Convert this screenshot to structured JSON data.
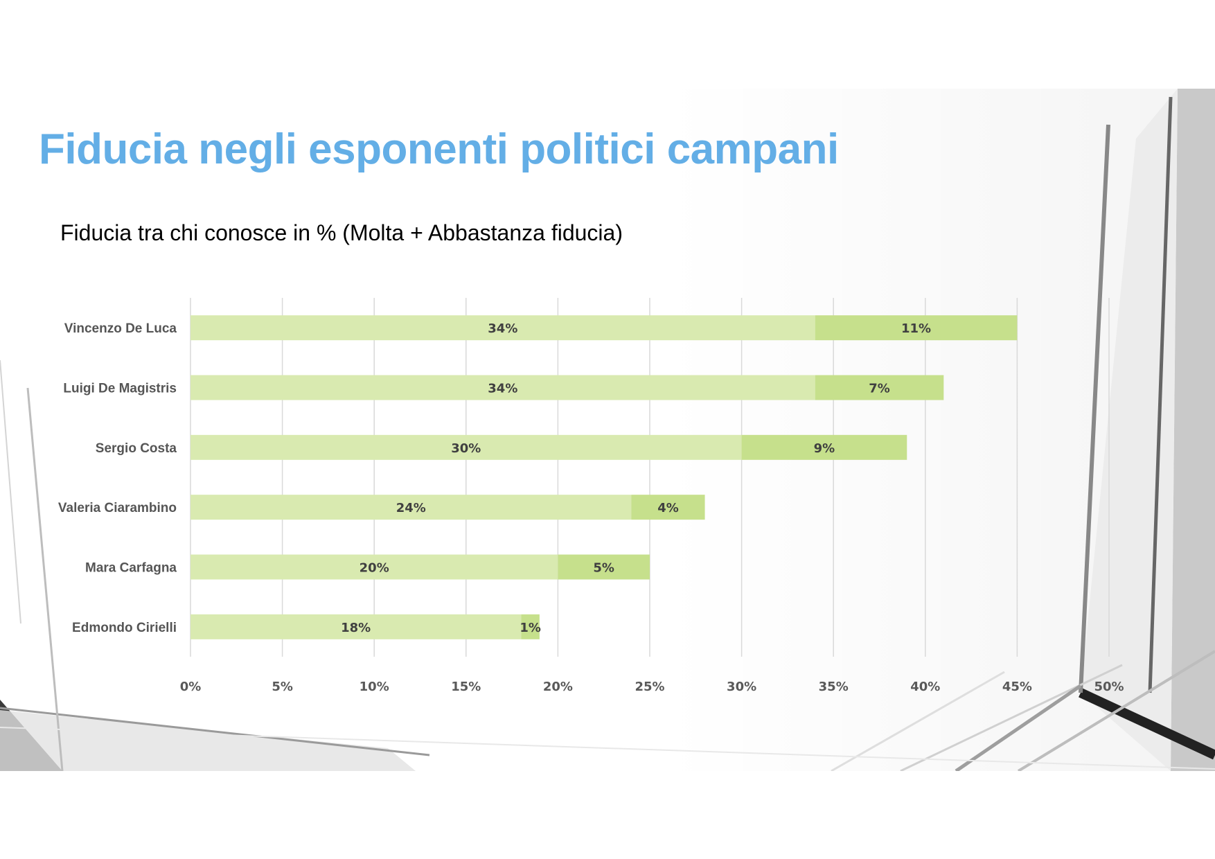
{
  "slide": {
    "title": "Fiducia negli esponenti politici campani",
    "chart_heading": "Fiducia tra chi conosce in % (Molta + Abbastanza fiducia)"
  },
  "colors": {
    "title": "#63aee6",
    "series_1": "#d9eab0",
    "series_2": "#c6e08c",
    "gridline": "#d9d9d9"
  },
  "chart_data": {
    "type": "bar",
    "orientation": "horizontal",
    "stacked": true,
    "title": "Fiducia tra chi conosce in % (Molta + Abbastanza fiducia)",
    "categories": [
      "Vincenzo De Luca",
      "Luigi De Magistris",
      "Sergio Costa",
      "Valeria Ciarambino",
      "Mara Carfagna",
      "Edmondo Cirielli"
    ],
    "series": [
      {
        "values": [
          34,
          34,
          30,
          24,
          20,
          18
        ],
        "labels": [
          "34%",
          "34%",
          "30%",
          "24%",
          "20%",
          "18%"
        ]
      },
      {
        "values": [
          11,
          7,
          9,
          4,
          5,
          1
        ],
        "labels": [
          "11%",
          "7%",
          "9%",
          "4%",
          "5%",
          "1%"
        ]
      }
    ],
    "xlim": [
      0,
      50
    ],
    "x_ticks": [
      "0%",
      "5%",
      "10%",
      "15%",
      "20%",
      "25%",
      "30%",
      "35%",
      "40%",
      "45%",
      "50%"
    ],
    "grid": true,
    "legend": "none"
  }
}
